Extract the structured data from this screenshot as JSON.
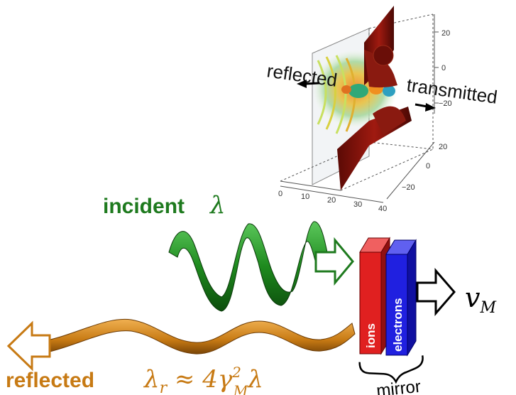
{
  "inset": {
    "labels": {
      "reflected": "reflected",
      "transmitted": "transmitted"
    },
    "axes": {
      "x_ticks": [
        "0",
        "10",
        "20",
        "30",
        "40"
      ],
      "y_ticks": [
        "20",
        "0",
        "−20"
      ],
      "z_ticks": [
        "20",
        "0",
        "−20"
      ]
    }
  },
  "incident": {
    "label": "incident",
    "symbol": "λ",
    "color": "#1e7a1e"
  },
  "reflected": {
    "label": "reflected",
    "formula": {
      "lambda": "λ",
      "sub_r": "r",
      "approx": " ≈ 4γ",
      "sup_2": "2",
      "sub_M": "M",
      "tail": "λ"
    },
    "color": "#c77a14"
  },
  "mirror": {
    "label": "mirror",
    "ions_label": "ions",
    "electrons_label": "electrons",
    "velocity": {
      "v": "v",
      "sub": "M"
    },
    "ions_color": "#e02020",
    "electrons_color": "#2020e0"
  }
}
